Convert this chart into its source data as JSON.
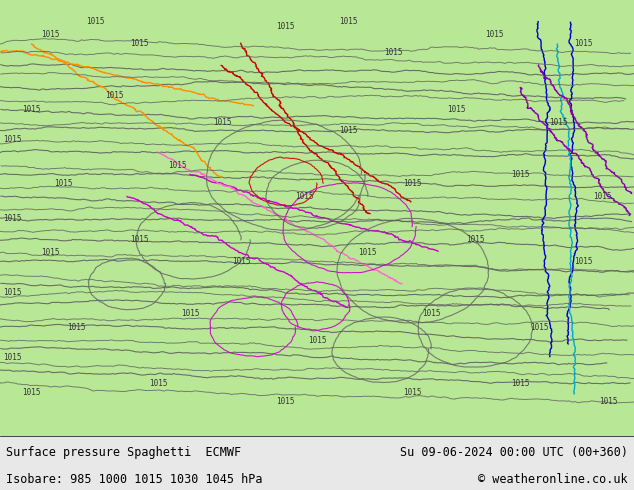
{
  "title_left": "Surface pressure Spaghetti  ECMWF",
  "title_right": "Su 09-06-2024 00:00 UTC (00+360)",
  "subtitle_left": "Isobare: 985 1000 1015 1030 1045 hPa",
  "subtitle_right": "© weatheronline.co.uk",
  "bg_color": "#b8e896",
  "bottom_bar_color": "#e8e8e8",
  "text_color": "#000000",
  "fig_width": 6.34,
  "fig_height": 4.9,
  "map_bg": "#b8e896",
  "land_color": "#b8e896",
  "bottom_bar_height": 0.11,
  "colors_map": {
    "dark_gray": "#606060",
    "orange": "#ff8c00",
    "red": "#cc0000",
    "magenta": "#cc00cc",
    "blue": "#0000cc",
    "cyan": "#00aacc",
    "purple": "#8800aa",
    "pink": "#ff66cc"
  }
}
